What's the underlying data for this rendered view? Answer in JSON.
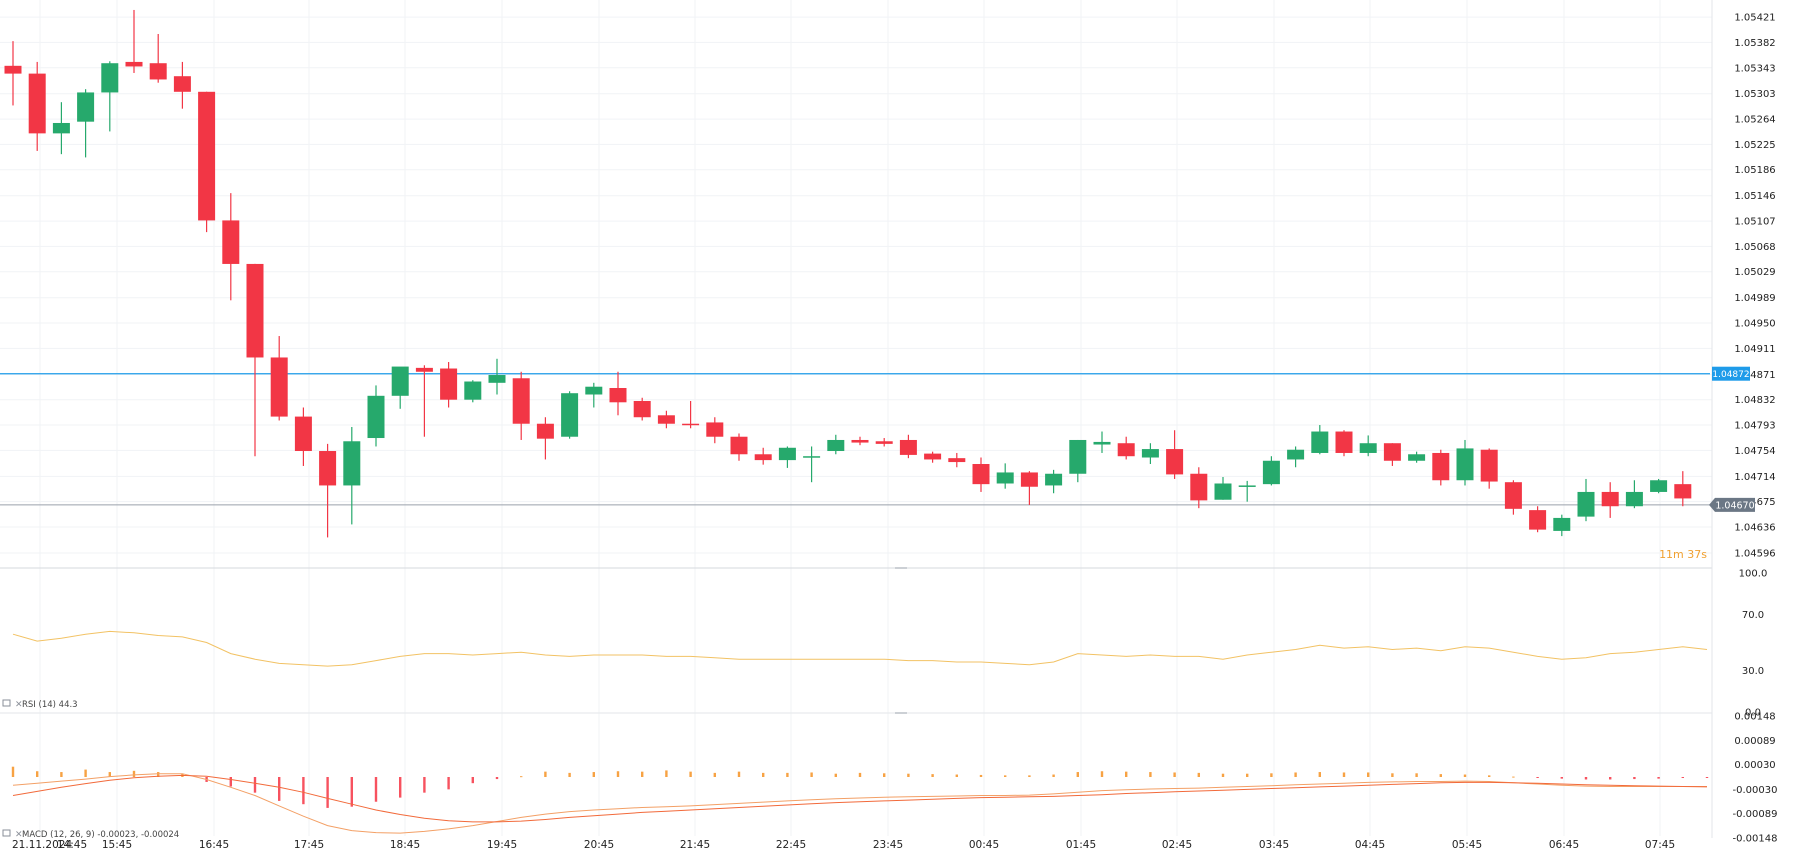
{
  "chart_data": [
    {
      "type": "candlestick",
      "time_labels": [
        "21.11.2024",
        "14:45",
        "15:45",
        "16:45",
        "17:45",
        "18:45",
        "19:45",
        "20:45",
        "21:45",
        "22:45",
        "23:45",
        "00:45",
        "01:45",
        "02:45",
        "03:45",
        "04:45",
        "05:45",
        "06:45",
        "07:45"
      ],
      "price_ticks": [
        "1.05421",
        "1.05382",
        "1.05343",
        "1.05303",
        "1.05264",
        "1.05225",
        "1.05186",
        "1.05146",
        "1.05107",
        "1.05068",
        "1.05029",
        "1.04989",
        "1.04950",
        "1.04911",
        "1.04871",
        "1.04832",
        "1.04793",
        "1.04754",
        "1.04714",
        "1.04675",
        "1.04636",
        "1.04596"
      ],
      "ylim": [
        1.04596,
        1.05435
      ],
      "bullish_color": "#26a96c",
      "bearish_color": "#f23645",
      "horizontal_line": {
        "value": 1.04872,
        "label": "1.04872",
        "color": "#1e9be9"
      },
      "last_price": {
        "value": 1.0467,
        "label": "1.04670",
        "color": "#6b7785"
      },
      "countdown": "11m 37s",
      "candles": [
        {
          "o": 1.05346,
          "h": 1.05384,
          "l": 1.05285,
          "c": 1.05334
        },
        {
          "o": 1.05334,
          "h": 1.05352,
          "l": 1.05215,
          "c": 1.05242
        },
        {
          "o": 1.05242,
          "h": 1.0529,
          "l": 1.0521,
          "c": 1.05258
        },
        {
          "o": 1.0526,
          "h": 1.0531,
          "l": 1.05205,
          "c": 1.05305
        },
        {
          "o": 1.05305,
          "h": 1.05353,
          "l": 1.05245,
          "c": 1.0535
        },
        {
          "o": 1.05352,
          "h": 1.05432,
          "l": 1.05335,
          "c": 1.05345
        },
        {
          "o": 1.0535,
          "h": 1.05395,
          "l": 1.0532,
          "c": 1.05325
        },
        {
          "o": 1.0533,
          "h": 1.05352,
          "l": 1.0528,
          "c": 1.05306
        },
        {
          "o": 1.05306,
          "h": 1.05306,
          "l": 1.0509,
          "c": 1.05108
        },
        {
          "o": 1.05108,
          "h": 1.0515,
          "l": 1.04985,
          "c": 1.05041
        },
        {
          "o": 1.05041,
          "h": 1.05041,
          "l": 1.04745,
          "c": 1.04897
        },
        {
          "o": 1.04897,
          "h": 1.0493,
          "l": 1.048,
          "c": 1.04806
        },
        {
          "o": 1.04806,
          "h": 1.0482,
          "l": 1.0473,
          "c": 1.04753
        },
        {
          "o": 1.04753,
          "h": 1.04764,
          "l": 1.0462,
          "c": 1.047
        },
        {
          "o": 1.047,
          "h": 1.0479,
          "l": 1.0464,
          "c": 1.04768
        },
        {
          "o": 1.04773,
          "h": 1.04854,
          "l": 1.0476,
          "c": 1.04838
        },
        {
          "o": 1.04838,
          "h": 1.0488,
          "l": 1.04818,
          "c": 1.04883
        },
        {
          "o": 1.04881,
          "h": 1.04885,
          "l": 1.04775,
          "c": 1.04875
        },
        {
          "o": 1.0488,
          "h": 1.0489,
          "l": 1.0482,
          "c": 1.04832
        },
        {
          "o": 1.04832,
          "h": 1.04862,
          "l": 1.04828,
          "c": 1.0486
        },
        {
          "o": 1.04858,
          "h": 1.04895,
          "l": 1.0484,
          "c": 1.0487
        },
        {
          "o": 1.04865,
          "h": 1.04875,
          "l": 1.0477,
          "c": 1.04795
        },
        {
          "o": 1.04795,
          "h": 1.04805,
          "l": 1.0474,
          "c": 1.04772
        },
        {
          "o": 1.04775,
          "h": 1.04845,
          "l": 1.04772,
          "c": 1.04842
        },
        {
          "o": 1.0484,
          "h": 1.04858,
          "l": 1.0482,
          "c": 1.04852
        },
        {
          "o": 1.0485,
          "h": 1.04875,
          "l": 1.04808,
          "c": 1.04828
        },
        {
          "o": 1.0483,
          "h": 1.04835,
          "l": 1.048,
          "c": 1.04805
        },
        {
          "o": 1.04808,
          "h": 1.04815,
          "l": 1.04788,
          "c": 1.04795
        },
        {
          "o": 1.04795,
          "h": 1.0483,
          "l": 1.04788,
          "c": 1.04794
        },
        {
          "o": 1.04797,
          "h": 1.04805,
          "l": 1.04765,
          "c": 1.04775
        },
        {
          "o": 1.04775,
          "h": 1.0478,
          "l": 1.04738,
          "c": 1.04748
        },
        {
          "o": 1.04748,
          "h": 1.04758,
          "l": 1.04732,
          "c": 1.04739
        },
        {
          "o": 1.04739,
          "h": 1.0476,
          "l": 1.04727,
          "c": 1.04758
        },
        {
          "o": 1.04745,
          "h": 1.0476,
          "l": 1.04705,
          "c": 1.04745
        },
        {
          "o": 1.04753,
          "h": 1.04778,
          "l": 1.04748,
          "c": 1.0477
        },
        {
          "o": 1.0477,
          "h": 1.04775,
          "l": 1.04762,
          "c": 1.04766
        },
        {
          "o": 1.04768,
          "h": 1.04773,
          "l": 1.0476,
          "c": 1.04764
        },
        {
          "o": 1.0477,
          "h": 1.04778,
          "l": 1.04742,
          "c": 1.04747
        },
        {
          "o": 1.04749,
          "h": 1.04752,
          "l": 1.04735,
          "c": 1.0474
        },
        {
          "o": 1.04742,
          "h": 1.0475,
          "l": 1.04728,
          "c": 1.04736
        },
        {
          "o": 1.04733,
          "h": 1.04743,
          "l": 1.0469,
          "c": 1.04702
        },
        {
          "o": 1.04703,
          "h": 1.04734,
          "l": 1.04695,
          "c": 1.0472
        },
        {
          "o": 1.0472,
          "h": 1.04722,
          "l": 1.0467,
          "c": 1.04698
        },
        {
          "o": 1.047,
          "h": 1.04724,
          "l": 1.04688,
          "c": 1.04718
        },
        {
          "o": 1.04718,
          "h": 1.0477,
          "l": 1.04705,
          "c": 1.0477
        },
        {
          "o": 1.04763,
          "h": 1.04783,
          "l": 1.0475,
          "c": 1.04767
        },
        {
          "o": 1.04765,
          "h": 1.04775,
          "l": 1.0474,
          "c": 1.04745
        },
        {
          "o": 1.04743,
          "h": 1.04765,
          "l": 1.04733,
          "c": 1.04756
        },
        {
          "o": 1.04756,
          "h": 1.04785,
          "l": 1.0471,
          "c": 1.04717
        },
        {
          "o": 1.04718,
          "h": 1.04728,
          "l": 1.04665,
          "c": 1.04677
        },
        {
          "o": 1.04678,
          "h": 1.04713,
          "l": 1.04678,
          "c": 1.04703
        },
        {
          "o": 1.047,
          "h": 1.04707,
          "l": 1.04675,
          "c": 1.047
        },
        {
          "o": 1.04702,
          "h": 1.04745,
          "l": 1.047,
          "c": 1.04738
        },
        {
          "o": 1.0474,
          "h": 1.0476,
          "l": 1.04728,
          "c": 1.04755
        },
        {
          "o": 1.0475,
          "h": 1.04793,
          "l": 1.04748,
          "c": 1.04783
        },
        {
          "o": 1.04783,
          "h": 1.04785,
          "l": 1.04745,
          "c": 1.0475
        },
        {
          "o": 1.0475,
          "h": 1.04777,
          "l": 1.04745,
          "c": 1.04765
        },
        {
          "o": 1.04765,
          "h": 1.04765,
          "l": 1.0473,
          "c": 1.04738
        },
        {
          "o": 1.04738,
          "h": 1.04752,
          "l": 1.04735,
          "c": 1.04748
        },
        {
          "o": 1.0475,
          "h": 1.04755,
          "l": 1.047,
          "c": 1.04708
        },
        {
          "o": 1.04708,
          "h": 1.0477,
          "l": 1.047,
          "c": 1.04757
        },
        {
          "o": 1.04755,
          "h": 1.04757,
          "l": 1.04695,
          "c": 1.04706
        },
        {
          "o": 1.04705,
          "h": 1.04708,
          "l": 1.04655,
          "c": 1.04664
        },
        {
          "o": 1.04662,
          "h": 1.04668,
          "l": 1.04628,
          "c": 1.04632
        },
        {
          "o": 1.0463,
          "h": 1.04655,
          "l": 1.04622,
          "c": 1.0465
        },
        {
          "o": 1.04652,
          "h": 1.0471,
          "l": 1.04645,
          "c": 1.0469
        },
        {
          "o": 1.0469,
          "h": 1.04705,
          "l": 1.0465,
          "c": 1.04668
        },
        {
          "o": 1.04668,
          "h": 1.04708,
          "l": 1.04665,
          "c": 1.0469
        },
        {
          "o": 1.0469,
          "h": 1.0471,
          "l": 1.04688,
          "c": 1.04708
        },
        {
          "o": 1.04702,
          "h": 1.04722,
          "l": 1.04668,
          "c": 1.0468
        }
      ]
    },
    {
      "type": "line",
      "label": "RSI (14) 44.3",
      "ticks": [
        "100.0",
        "70.0",
        "30.0",
        "0.0"
      ],
      "ylim": [
        0,
        100
      ],
      "color": "#f2c264",
      "values": [
        56,
        51,
        53,
        56,
        58,
        57,
        55,
        54,
        50,
        42,
        38,
        35,
        34,
        33,
        34,
        37,
        40,
        42,
        42,
        41,
        42,
        43,
        41,
        40,
        41,
        41,
        41,
        40,
        40,
        39,
        38,
        38,
        38,
        38,
        38,
        38,
        38,
        37,
        37,
        36,
        36,
        35,
        34,
        36,
        42,
        41,
        40,
        41,
        40,
        40,
        38,
        41,
        43,
        45,
        48,
        46,
        47,
        45,
        46,
        44,
        47,
        46,
        43,
        40,
        38,
        39,
        42,
        43,
        45,
        47,
        45
      ]
    },
    {
      "type": "bar+line",
      "label": "MACD (12, 26, 9) -0.00023, -0.00024",
      "ticks": [
        "0.00148",
        "0.00089",
        "0.00030",
        "-0.00030",
        "-0.00089",
        "-0.00148"
      ],
      "ylim": [
        -0.00148,
        0.00148
      ],
      "histogram_color": "#f7a243",
      "negative_histogram_color": "#f7525f",
      "macd_line_color": "#f3a066",
      "signal_line_color": "#f26a3b",
      "histogram": [
        0.00025,
        0.00014,
        0.00012,
        0.00018,
        0.00012,
        0.00015,
        0.00012,
        8e-05,
        -0.00012,
        -0.00023,
        -0.00038,
        -0.00058,
        -0.00066,
        -0.00075,
        -0.00072,
        -0.0006,
        -0.0005,
        -0.00038,
        -0.0003,
        -0.00015,
        -5e-05,
        2e-05,
        0.00013,
        0.0001,
        0.00012,
        0.00014,
        0.00013,
        0.00016,
        0.00013,
        0.0001,
        0.00013,
        0.0001,
        0.0001,
        0.00011,
        8e-05,
        0.0001,
        9e-05,
        8e-05,
        7e-05,
        6e-05,
        5e-05,
        4e-05,
        4e-05,
        6e-05,
        0.00012,
        0.00014,
        0.00013,
        0.00012,
        0.00011,
        0.0001,
        8e-05,
        8e-05,
        9e-05,
        0.00011,
        0.00012,
        0.00011,
        0.00011,
        9e-05,
        9e-05,
        7e-05,
        6e-05,
        4e-05,
        1e-05,
        -2e-05,
        -4e-05,
        -6e-05,
        -6e-05,
        -5e-05,
        -4e-05,
        -2e-05,
        -1e-05
      ],
      "macd": [
        -0.0002,
        -0.00015,
        -0.0001,
        -5e-05,
        1e-05,
        5e-05,
        8e-05,
        8e-05,
        -6e-05,
        -0.00025,
        -0.00045,
        -0.0007,
        -0.00095,
        -0.00118,
        -0.0013,
        -0.00135,
        -0.00136,
        -0.00132,
        -0.00126,
        -0.00118,
        -0.00108,
        -0.00098,
        -0.0009,
        -0.00084,
        -0.0008,
        -0.00077,
        -0.00074,
        -0.00072,
        -0.0007,
        -0.00067,
        -0.00064,
        -0.00061,
        -0.00058,
        -0.00055,
        -0.00053,
        -0.00051,
        -0.00049,
        -0.00048,
        -0.00047,
        -0.00046,
        -0.00045,
        -0.00045,
        -0.00044,
        -0.00041,
        -0.00037,
        -0.00033,
        -0.00031,
        -0.00029,
        -0.00028,
        -0.00027,
        -0.00025,
        -0.00023,
        -0.00021,
        -0.00019,
        -0.00017,
        -0.00015,
        -0.00013,
        -0.00012,
        -0.00011,
        -0.00011,
        -0.0001,
        -0.00011,
        -0.00014,
        -0.00017,
        -0.0002,
        -0.00022,
        -0.00023,
        -0.00023,
        -0.00023,
        -0.00023,
        -0.00023
      ],
      "signal": [
        -0.00045,
        -0.00035,
        -0.00025,
        -0.00016,
        -8e-05,
        -2e-05,
        2e-05,
        4e-05,
        2e-05,
        -6e-05,
        -0.00015,
        -0.00025,
        -0.00037,
        -0.00052,
        -0.00066,
        -0.0008,
        -0.00091,
        -0.001,
        -0.00106,
        -0.00109,
        -0.00109,
        -0.00107,
        -0.00103,
        -0.00098,
        -0.00094,
        -0.0009,
        -0.00086,
        -0.00083,
        -0.0008,
        -0.00077,
        -0.00074,
        -0.00071,
        -0.00068,
        -0.00065,
        -0.00062,
        -0.0006,
        -0.00058,
        -0.00056,
        -0.00054,
        -0.00052,
        -0.0005,
        -0.00049,
        -0.00048,
        -0.00047,
        -0.00045,
        -0.00043,
        -0.0004,
        -0.00038,
        -0.00036,
        -0.00034,
        -0.00032,
        -0.0003,
        -0.00028,
        -0.00026,
        -0.00024,
        -0.00022,
        -0.0002,
        -0.00018,
        -0.00016,
        -0.00014,
        -0.00013,
        -0.00013,
        -0.00014,
        -0.00015,
        -0.00017,
        -0.00019,
        -0.0002,
        -0.00021,
        -0.00022,
        -0.00023,
        -0.00024
      ]
    }
  ]
}
